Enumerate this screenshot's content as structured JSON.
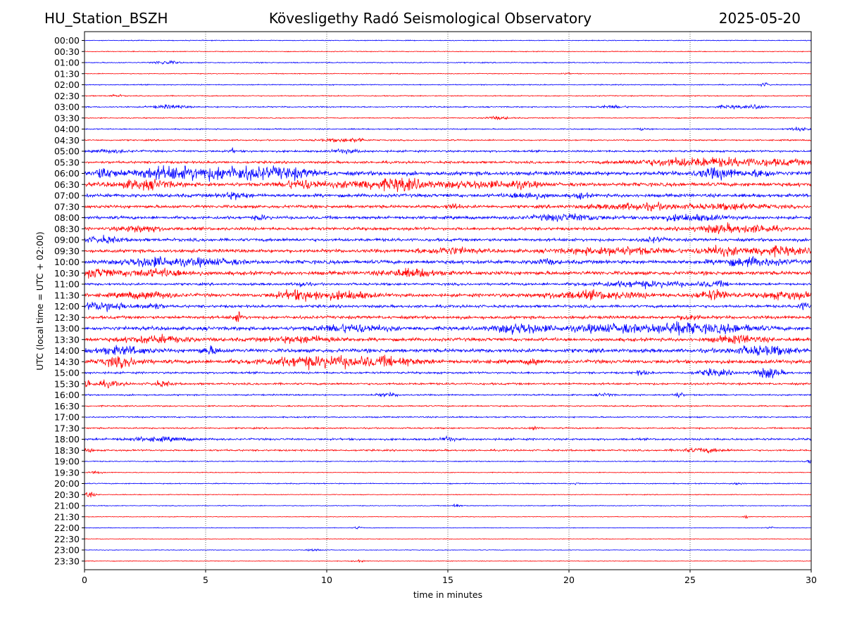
{
  "header": {
    "station": "HU_Station_BSZH",
    "title": "Kövesligethy Radó Seismological Observatory",
    "date": "2025-05-20"
  },
  "chart_data": {
    "type": "line",
    "title": "Kövesligethy Radó Seismological Observatory",
    "xlabel": "time in minutes",
    "ylabel": "UTC (local time = UTC + 02:00)",
    "xlim": [
      0,
      30
    ],
    "x_ticks": [
      "0",
      "5",
      "10",
      "15",
      "20",
      "25",
      "30"
    ],
    "grid": "vertical dotted",
    "colors": {
      "even_rows": "#0000ff",
      "odd_rows": "#ff0000"
    },
    "rows": [
      {
        "label": "00:00",
        "amp": 0.12,
        "events": []
      },
      {
        "label": "00:30",
        "amp": 0.12,
        "events": []
      },
      {
        "label": "01:00",
        "amp": 0.15,
        "events": [
          {
            "x": 3.2,
            "a": 0.5,
            "w": 0.25
          },
          {
            "x": 3.7,
            "a": 0.3,
            "w": 0.2
          }
        ]
      },
      {
        "label": "01:30",
        "amp": 0.12,
        "events": [
          {
            "x": 19.9,
            "a": 0.3,
            "w": 0.1
          }
        ]
      },
      {
        "label": "02:00",
        "amp": 0.15,
        "events": [
          {
            "x": 28.1,
            "a": 0.5,
            "w": 0.15
          }
        ]
      },
      {
        "label": "02:30",
        "amp": 0.15,
        "events": [
          {
            "x": 1.3,
            "a": 0.3,
            "w": 0.2
          }
        ]
      },
      {
        "label": "03:00",
        "amp": 0.18,
        "events": [
          {
            "x": 3.5,
            "a": 0.5,
            "w": 0.5
          },
          {
            "x": 21.8,
            "a": 0.4,
            "w": 0.4
          },
          {
            "x": 26.8,
            "a": 0.4,
            "w": 0.6
          },
          {
            "x": 27.8,
            "a": 0.5,
            "w": 0.2
          }
        ]
      },
      {
        "label": "03:30",
        "amp": 0.15,
        "events": [
          {
            "x": 17.0,
            "a": 0.4,
            "w": 0.4
          }
        ]
      },
      {
        "label": "04:00",
        "amp": 0.18,
        "events": [
          {
            "x": 23.0,
            "a": 0.4,
            "w": 0.1
          },
          {
            "x": 29.5,
            "a": 0.5,
            "w": 0.3
          }
        ]
      },
      {
        "label": "04:30",
        "amp": 0.2,
        "events": [
          {
            "x": 10.5,
            "a": 0.4,
            "w": 0.6
          },
          {
            "x": 11.3,
            "a": 0.5,
            "w": 0.2
          }
        ]
      },
      {
        "label": "05:00",
        "amp": 0.3,
        "events": [
          {
            "x": 1.0,
            "a": 0.4,
            "w": 0.6
          },
          {
            "x": 10.8,
            "a": 0.5,
            "w": 0.4
          },
          {
            "x": 6.1,
            "a": 0.6,
            "w": 0.1
          }
        ]
      },
      {
        "label": "05:30",
        "amp": 0.35,
        "events": [
          {
            "x": 24.0,
            "a": 0.6,
            "w": 1.5
          },
          {
            "x": 26.0,
            "a": 0.9,
            "w": 1.5
          },
          {
            "x": 28.8,
            "a": 0.7,
            "w": 1.2
          }
        ]
      },
      {
        "label": "06:00",
        "amp": 0.6,
        "events": [
          {
            "x": 0.8,
            "a": 1.4,
            "w": 0.3
          },
          {
            "x": 3.2,
            "a": 1.4,
            "w": 1.0
          },
          {
            "x": 6.0,
            "a": 1.7,
            "w": 1.4
          },
          {
            "x": 8.5,
            "a": 1.0,
            "w": 0.8
          },
          {
            "x": 26.2,
            "a": 1.3,
            "w": 0.6
          },
          {
            "x": 28.0,
            "a": 1.0,
            "w": 0.3
          }
        ]
      },
      {
        "label": "06:30",
        "amp": 0.55,
        "events": [
          {
            "x": 2.5,
            "a": 1.2,
            "w": 0.8
          },
          {
            "x": 9.0,
            "a": 1.2,
            "w": 0.6
          },
          {
            "x": 13.2,
            "a": 1.6,
            "w": 0.6
          },
          {
            "x": 11.5,
            "a": 1.0,
            "w": 0.8
          },
          {
            "x": 16.0,
            "a": 0.9,
            "w": 1.0
          },
          {
            "x": 18.0,
            "a": 0.8,
            "w": 0.5
          }
        ]
      },
      {
        "label": "07:00",
        "amp": 0.5,
        "events": [
          {
            "x": 6.2,
            "a": 0.8,
            "w": 0.4
          },
          {
            "x": 18.3,
            "a": 0.9,
            "w": 0.5
          },
          {
            "x": 20.5,
            "a": 0.7,
            "w": 0.2
          }
        ]
      },
      {
        "label": "07:30",
        "amp": 0.45,
        "events": [
          {
            "x": 15.2,
            "a": 0.8,
            "w": 0.2
          },
          {
            "x": 23.0,
            "a": 0.8,
            "w": 1.5
          },
          {
            "x": 27.0,
            "a": 0.7,
            "w": 1.0
          }
        ]
      },
      {
        "label": "08:00",
        "amp": 0.45,
        "events": [
          {
            "x": 7.3,
            "a": 0.6,
            "w": 0.2
          },
          {
            "x": 20.0,
            "a": 0.9,
            "w": 1.0
          },
          {
            "x": 25.0,
            "a": 0.8,
            "w": 1.0
          }
        ]
      },
      {
        "label": "08:30",
        "amp": 0.45,
        "events": [
          {
            "x": 2.3,
            "a": 0.9,
            "w": 0.6
          },
          {
            "x": 26.3,
            "a": 1.1,
            "w": 0.8
          },
          {
            "x": 28.0,
            "a": 0.8,
            "w": 0.5
          }
        ]
      },
      {
        "label": "09:00",
        "amp": 0.45,
        "events": [
          {
            "x": 0.8,
            "a": 0.8,
            "w": 0.5
          },
          {
            "x": 23.5,
            "a": 0.6,
            "w": 0.3
          }
        ]
      },
      {
        "label": "09:30",
        "amp": 0.5,
        "events": [
          {
            "x": 15.0,
            "a": 0.9,
            "w": 0.8
          },
          {
            "x": 22.0,
            "a": 1.0,
            "w": 1.5
          },
          {
            "x": 26.2,
            "a": 1.1,
            "w": 0.6
          },
          {
            "x": 28.5,
            "a": 1.1,
            "w": 1.0
          }
        ]
      },
      {
        "label": "10:00",
        "amp": 0.55,
        "events": [
          {
            "x": 2.7,
            "a": 1.2,
            "w": 0.8
          },
          {
            "x": 5.0,
            "a": 0.8,
            "w": 1.0
          },
          {
            "x": 19.0,
            "a": 0.7,
            "w": 0.3
          },
          {
            "x": 27.5,
            "a": 1.0,
            "w": 1.0
          }
        ]
      },
      {
        "label": "10:30",
        "amp": 0.55,
        "events": [
          {
            "x": 0.5,
            "a": 1.1,
            "w": 0.5
          },
          {
            "x": 3.0,
            "a": 0.9,
            "w": 1.0
          },
          {
            "x": 13.5,
            "a": 1.0,
            "w": 0.8
          }
        ]
      },
      {
        "label": "11:00",
        "amp": 0.35,
        "events": [
          {
            "x": 9.0,
            "a": 0.7,
            "w": 0.2
          },
          {
            "x": 23.0,
            "a": 0.8,
            "w": 1.5
          },
          {
            "x": 26.0,
            "a": 0.7,
            "w": 0.4
          }
        ]
      },
      {
        "label": "11:30",
        "amp": 0.5,
        "events": [
          {
            "x": 2.5,
            "a": 0.9,
            "w": 0.8
          },
          {
            "x": 9.0,
            "a": 1.3,
            "w": 0.8
          },
          {
            "x": 11.0,
            "a": 1.0,
            "w": 0.6
          },
          {
            "x": 21.0,
            "a": 1.0,
            "w": 1.5
          },
          {
            "x": 26.0,
            "a": 1.3,
            "w": 0.5
          },
          {
            "x": 29.0,
            "a": 1.0,
            "w": 0.8
          }
        ]
      },
      {
        "label": "12:00",
        "amp": 0.4,
        "events": [
          {
            "x": 0.8,
            "a": 1.2,
            "w": 0.7
          },
          {
            "x": 2.8,
            "a": 0.9,
            "w": 0.3
          },
          {
            "x": 29.7,
            "a": 1.0,
            "w": 0.2
          }
        ]
      },
      {
        "label": "12:30",
        "amp": 0.45,
        "events": [
          {
            "x": 6.3,
            "a": 1.4,
            "w": 0.15
          },
          {
            "x": 25.0,
            "a": 0.8,
            "w": 0.3
          }
        ]
      },
      {
        "label": "13:00",
        "amp": 0.55,
        "events": [
          {
            "x": 11.0,
            "a": 1.0,
            "w": 1.0
          },
          {
            "x": 18.0,
            "a": 1.4,
            "w": 0.7
          },
          {
            "x": 22.0,
            "a": 1.0,
            "w": 1.5
          },
          {
            "x": 24.5,
            "a": 1.3,
            "w": 0.6
          },
          {
            "x": 26.5,
            "a": 1.0,
            "w": 1.0
          }
        ]
      },
      {
        "label": "13:30",
        "amp": 0.5,
        "events": [
          {
            "x": 3.0,
            "a": 0.9,
            "w": 1.0
          },
          {
            "x": 9.0,
            "a": 0.8,
            "w": 1.0
          },
          {
            "x": 27.0,
            "a": 1.0,
            "w": 0.7
          }
        ]
      },
      {
        "label": "14:00",
        "amp": 0.55,
        "events": [
          {
            "x": 1.5,
            "a": 1.0,
            "w": 0.8
          },
          {
            "x": 5.2,
            "a": 1.0,
            "w": 0.3
          },
          {
            "x": 28.0,
            "a": 1.1,
            "w": 1.0
          }
        ]
      },
      {
        "label": "14:30",
        "amp": 0.55,
        "events": [
          {
            "x": 1.5,
            "a": 1.2,
            "w": 0.6
          },
          {
            "x": 9.5,
            "a": 1.4,
            "w": 1.5
          },
          {
            "x": 12.5,
            "a": 1.0,
            "w": 1.0
          },
          {
            "x": 18.5,
            "a": 0.9,
            "w": 0.2
          }
        ]
      },
      {
        "label": "15:00",
        "amp": 0.3,
        "events": [
          {
            "x": 26.0,
            "a": 0.9,
            "w": 0.5
          },
          {
            "x": 28.2,
            "a": 1.5,
            "w": 0.4
          },
          {
            "x": 23.0,
            "a": 0.6,
            "w": 0.2
          }
        ]
      },
      {
        "label": "15:30",
        "amp": 0.3,
        "events": [
          {
            "x": 0.1,
            "a": 1.4,
            "w": 0.1
          },
          {
            "x": 1.0,
            "a": 0.8,
            "w": 0.4
          },
          {
            "x": 3.2,
            "a": 0.7,
            "w": 0.3
          }
        ]
      },
      {
        "label": "16:00",
        "amp": 0.22,
        "events": [
          {
            "x": 12.5,
            "a": 0.5,
            "w": 0.3
          },
          {
            "x": 24.5,
            "a": 0.8,
            "w": 0.15
          },
          {
            "x": 21.5,
            "a": 0.5,
            "w": 0.2
          }
        ]
      },
      {
        "label": "16:30",
        "amp": 0.2,
        "events": []
      },
      {
        "label": "17:00",
        "amp": 0.2,
        "events": []
      },
      {
        "label": "17:30",
        "amp": 0.22,
        "events": [
          {
            "x": 18.5,
            "a": 0.6,
            "w": 0.15
          }
        ]
      },
      {
        "label": "18:00",
        "amp": 0.3,
        "events": [
          {
            "x": 3.0,
            "a": 0.5,
            "w": 1.0
          },
          {
            "x": 15.0,
            "a": 0.6,
            "w": 0.2
          }
        ]
      },
      {
        "label": "18:30",
        "amp": 0.25,
        "events": [
          {
            "x": 0.1,
            "a": 0.7,
            "w": 0.15
          },
          {
            "x": 25.5,
            "a": 0.6,
            "w": 0.6
          }
        ]
      },
      {
        "label": "19:00",
        "amp": 0.15,
        "events": [
          {
            "x": 29.9,
            "a": 0.5,
            "w": 0.1
          }
        ]
      },
      {
        "label": "19:30",
        "amp": 0.12,
        "events": [
          {
            "x": 0.5,
            "a": 0.3,
            "w": 0.2
          }
        ]
      },
      {
        "label": "20:00",
        "amp": 0.15,
        "events": [
          {
            "x": 27.0,
            "a": 0.4,
            "w": 0.15
          },
          {
            "x": 20.3,
            "a": 0.3,
            "w": 0.1
          }
        ]
      },
      {
        "label": "20:30",
        "amp": 0.12,
        "events": [
          {
            "x": 0.2,
            "a": 0.8,
            "w": 0.15
          }
        ]
      },
      {
        "label": "21:00",
        "amp": 0.12,
        "events": [
          {
            "x": 15.3,
            "a": 0.5,
            "w": 0.15
          }
        ]
      },
      {
        "label": "21:30",
        "amp": 0.1,
        "events": [
          {
            "x": 27.3,
            "a": 0.5,
            "w": 0.1
          }
        ]
      },
      {
        "label": "22:00",
        "amp": 0.1,
        "events": [
          {
            "x": 11.3,
            "a": 0.5,
            "w": 0.1
          },
          {
            "x": 28.3,
            "a": 0.3,
            "w": 0.1
          }
        ]
      },
      {
        "label": "22:30",
        "amp": 0.1,
        "events": []
      },
      {
        "label": "23:00",
        "amp": 0.1,
        "events": [
          {
            "x": 9.5,
            "a": 0.3,
            "w": 0.2
          }
        ]
      },
      {
        "label": "23:30",
        "amp": 0.1,
        "events": [
          {
            "x": 11.3,
            "a": 0.3,
            "w": 0.15
          }
        ]
      }
    ]
  }
}
